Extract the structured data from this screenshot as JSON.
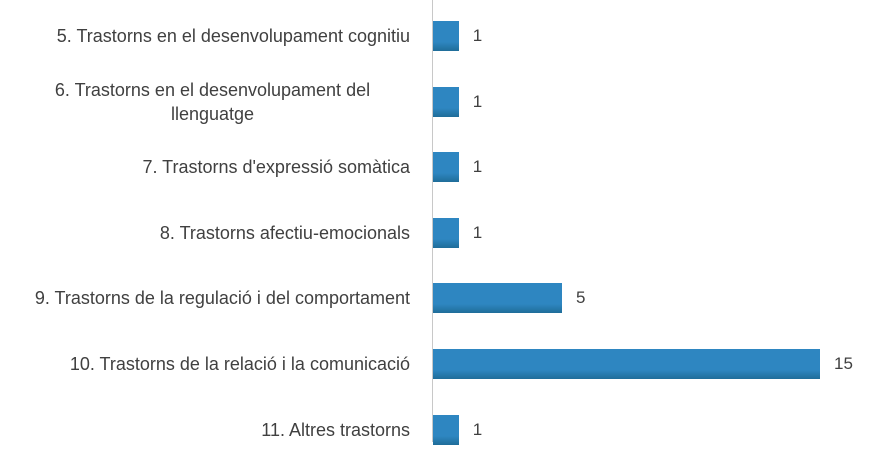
{
  "chart_data": {
    "type": "bar",
    "categories": [
      "5. Trastorns en el desenvolupament cognitiu",
      "6. Trastorns en el desenvolupament del llenguatge",
      "7. Trastorns d'expressió somàtica",
      "8. Trastorns afectiu-emocionals",
      "9. Trastorns de la regulació i del comportament",
      "10. Trastorns de la relació i la comunicació",
      "11. Altres trastorns"
    ],
    "values": [
      1,
      1,
      1,
      1,
      5,
      15,
      1
    ],
    "color": "#2e86c1"
  }
}
